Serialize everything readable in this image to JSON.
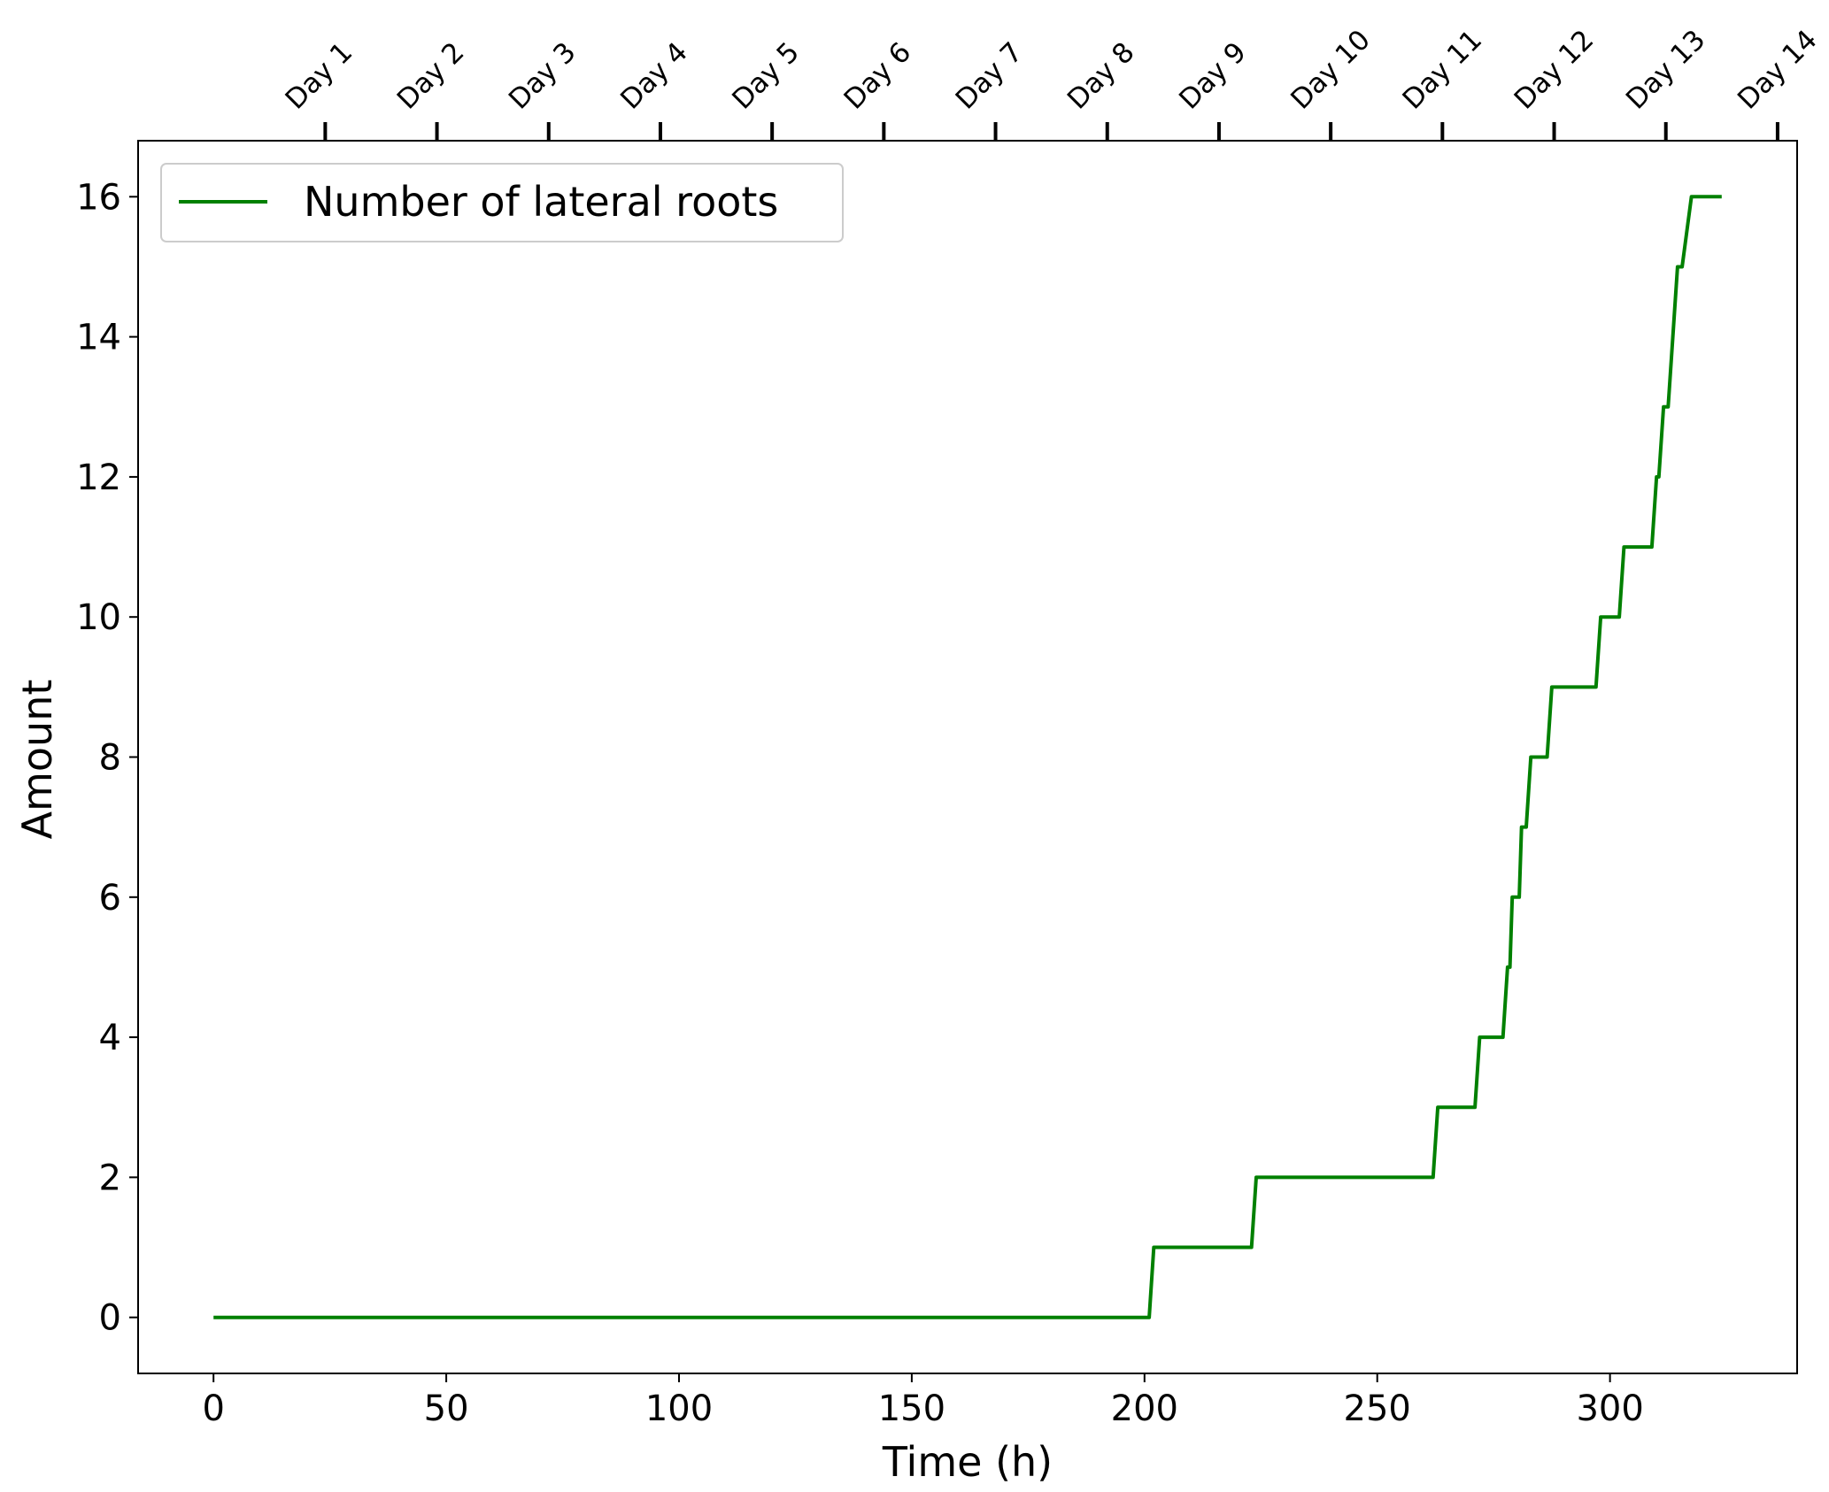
{
  "chart_data": {
    "type": "line",
    "xlabel": "Time (h)",
    "ylabel": "Amount",
    "xlim": [
      -16.2,
      340.2
    ],
    "ylim": [
      -0.8,
      16.8
    ],
    "x_ticks": [
      0,
      50,
      100,
      150,
      200,
      250,
      300
    ],
    "y_ticks": [
      0,
      2,
      4,
      6,
      8,
      10,
      12,
      14,
      16
    ],
    "top_axis": {
      "tick_hours": [
        24,
        48,
        72,
        96,
        120,
        144,
        168,
        192,
        216,
        240,
        264,
        288,
        312,
        336
      ],
      "tick_labels": [
        "Day 1",
        "Day 2",
        "Day 3",
        "Day 4",
        "Day 5",
        "Day 6",
        "Day 7",
        "Day 8",
        "Day 9",
        "Day 10",
        "Day 11",
        "Day 12",
        "Day 13",
        "Day 14"
      ]
    },
    "grid": false,
    "legend": {
      "position": "top-left",
      "entries": [
        "Number of lateral roots"
      ]
    },
    "series": [
      {
        "name": "Number of lateral roots",
        "color": "#008000",
        "x": [
          0,
          201,
          202,
          223,
          224,
          262,
          263,
          271,
          272,
          277,
          278,
          278.5,
          279,
          280.5,
          281,
          282,
          283,
          284.5,
          286.5,
          287.5,
          297,
          298,
          302,
          303,
          309,
          310,
          310.5,
          311.5,
          312.5,
          314.5,
          315.5,
          317.5,
          318.5,
          324
        ],
        "y": [
          0,
          0,
          1,
          1,
          2,
          2,
          3,
          3,
          4,
          4,
          5,
          5,
          6,
          6,
          7,
          7,
          8,
          8,
          8,
          9,
          9,
          10,
          10,
          11,
          11,
          12,
          12,
          13,
          13,
          15,
          15,
          16,
          16,
          16
        ]
      }
    ]
  }
}
